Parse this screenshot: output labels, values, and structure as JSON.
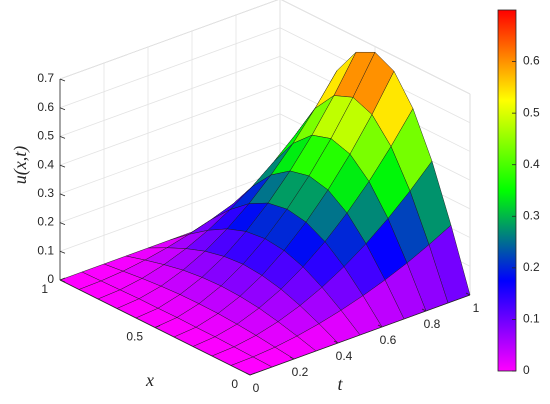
{
  "chart_data": {
    "type": "surface",
    "xlabel": "x",
    "ylabel": "t",
    "zlabel": "u(x,t)",
    "x": [
      0,
      0.1,
      0.2,
      0.3,
      0.4,
      0.5,
      0.6,
      0.7,
      0.8,
      0.9,
      1
    ],
    "y": [
      0,
      0.1,
      0.2,
      0.3,
      0.4,
      0.5,
      0.6,
      0.7,
      0.8,
      0.9,
      1
    ],
    "z": [
      [
        0,
        0,
        0,
        0,
        0,
        0,
        0,
        0,
        0,
        0,
        0
      ],
      [
        0,
        0.002,
        0.008,
        0.019,
        0.034,
        0.053,
        0.076,
        0.103,
        0.134,
        0.17,
        0.21
      ],
      [
        0,
        0.004,
        0.016,
        0.036,
        0.064,
        0.1,
        0.144,
        0.196,
        0.256,
        0.324,
        0.4
      ],
      [
        0,
        0.006,
        0.022,
        0.05,
        0.088,
        0.138,
        0.198,
        0.27,
        0.352,
        0.446,
        0.55
      ],
      [
        0,
        0.006,
        0.026,
        0.058,
        0.103,
        0.162,
        0.233,
        0.317,
        0.414,
        0.524,
        0.647
      ],
      [
        0,
        0.007,
        0.027,
        0.061,
        0.109,
        0.17,
        0.245,
        0.333,
        0.435,
        0.551,
        0.68
      ],
      [
        0,
        0.006,
        0.026,
        0.058,
        0.103,
        0.162,
        0.233,
        0.317,
        0.414,
        0.524,
        0.647
      ],
      [
        0,
        0.006,
        0.022,
        0.05,
        0.088,
        0.138,
        0.198,
        0.27,
        0.352,
        0.446,
        0.55
      ],
      [
        0,
        0.004,
        0.016,
        0.036,
        0.064,
        0.1,
        0.144,
        0.196,
        0.256,
        0.324,
        0.4
      ],
      [
        0,
        0.002,
        0.008,
        0.019,
        0.034,
        0.053,
        0.076,
        0.103,
        0.134,
        0.17,
        0.21
      ],
      [
        0,
        0,
        0,
        0,
        0,
        0,
        0,
        0,
        0,
        0,
        0
      ]
    ],
    "xlim": [
      0,
      1
    ],
    "xticks": [
      0,
      0.5,
      1
    ],
    "ylim": [
      0,
      1
    ],
    "yticks": [
      0,
      0.2,
      0.4,
      0.6,
      0.8,
      1
    ],
    "zlim": [
      0,
      0.7
    ],
    "zticks": [
      0,
      0.1,
      0.2,
      0.3,
      0.4,
      0.5,
      0.6,
      0.7
    ],
    "clim": [
      0,
      0.7
    ],
    "cticks": [
      0,
      0.1,
      0.2,
      0.3,
      0.4,
      0.5,
      0.6
    ],
    "colormap": [
      "#ff00ff",
      "#0000ff",
      "#00ff00",
      "#ffff00",
      "#ff0000"
    ],
    "grid": true,
    "colorbar": true
  }
}
